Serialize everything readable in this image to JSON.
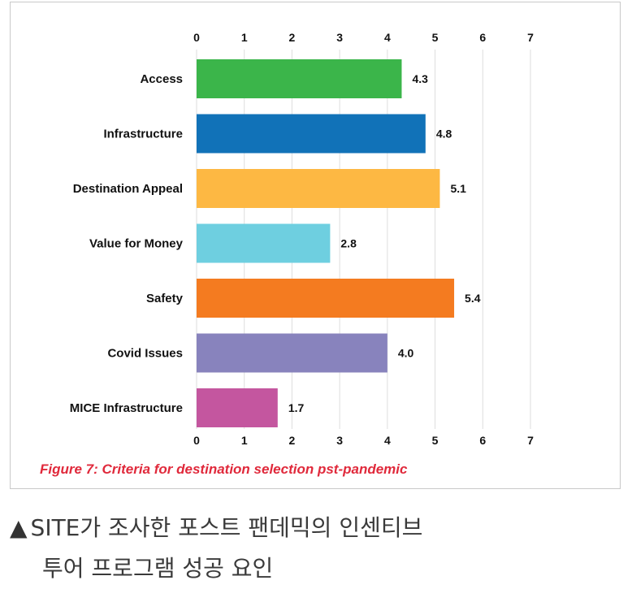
{
  "chart_data": {
    "type": "bar",
    "orientation": "horizontal",
    "categories": [
      "Access",
      "Infrastructure",
      "Destination Appeal",
      "Value for Money",
      "Safety",
      "Covid Issues",
      "MICE Infrastructure"
    ],
    "values": [
      4.3,
      4.8,
      5.1,
      2.8,
      5.4,
      4.0,
      1.7
    ],
    "data_labels": [
      "4.3",
      "4.8",
      "5.1",
      "2.8",
      "5.4",
      "4.0",
      "1.7"
    ],
    "colors": [
      "#3bb54a",
      "#1172b8",
      "#fdb843",
      "#6ecfe0",
      "#f47b20",
      "#8883bd",
      "#c4569f"
    ],
    "xlim": [
      0,
      7
    ],
    "xticks": [
      "0",
      "1",
      "2",
      "3",
      "4",
      "5",
      "6",
      "7"
    ],
    "grid": true,
    "title": "",
    "xlabel": "",
    "ylabel": ""
  },
  "figure_caption": "Figure 7: Criteria for destination selection pst-pandemic",
  "outer_caption": {
    "triangle": "▲",
    "line1": "SITE가 조사한 포스트 팬데믹의 인센티브",
    "line2": "투어 프로그램 성공 요인"
  }
}
